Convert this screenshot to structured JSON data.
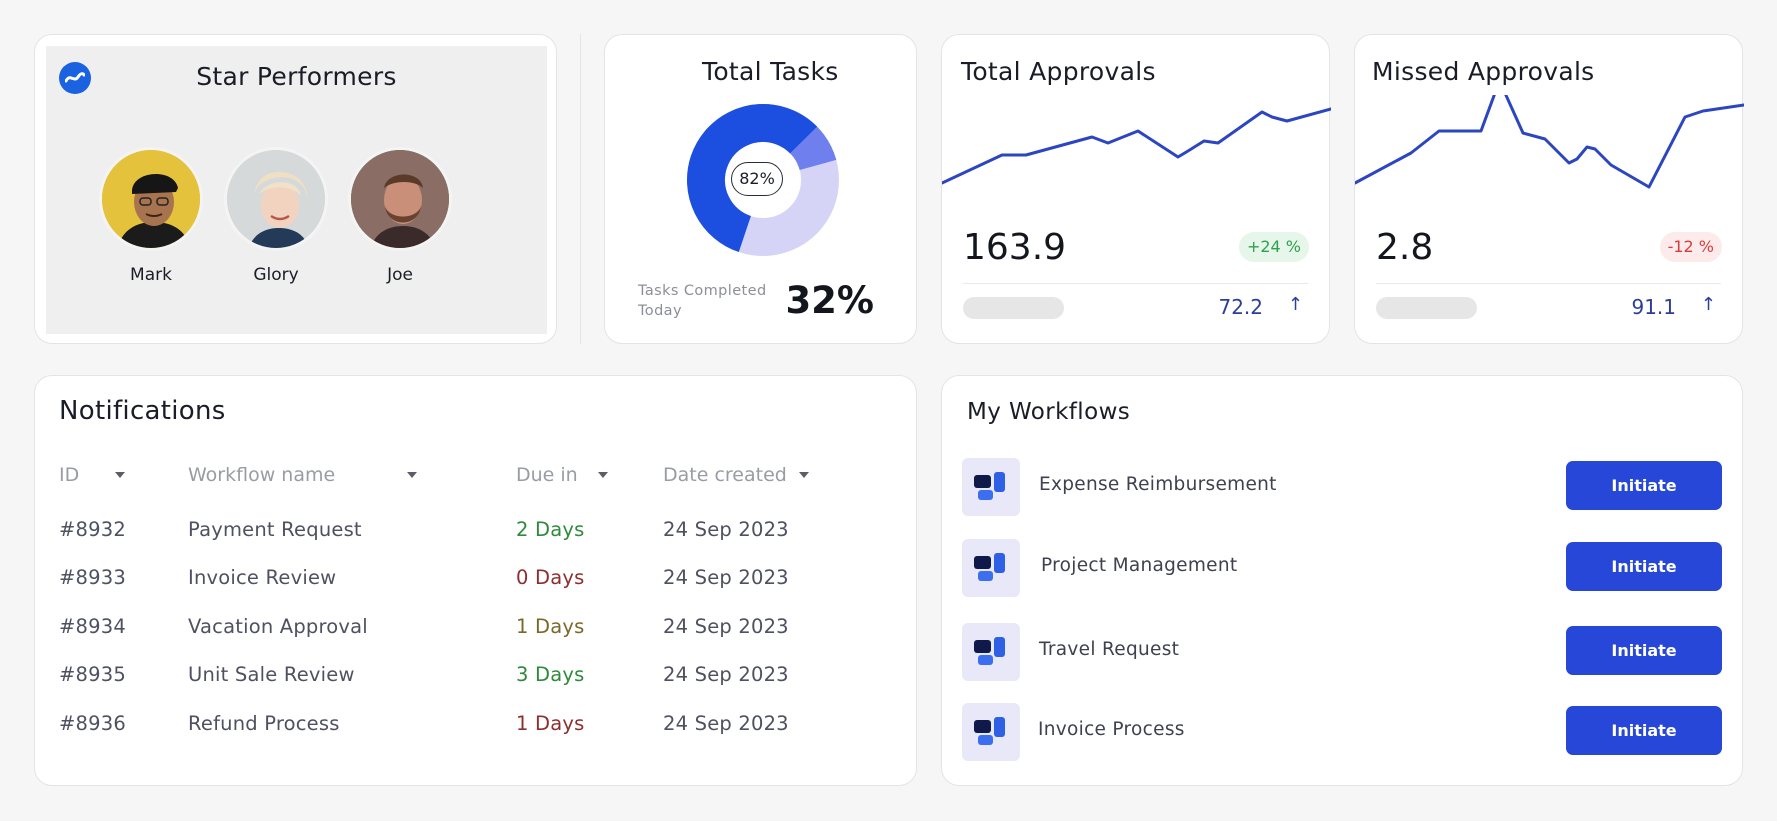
{
  "star_performers": {
    "title": "Star Performers",
    "people": [
      {
        "name": "Mark"
      },
      {
        "name": "Glory"
      },
      {
        "name": "Joe"
      }
    ]
  },
  "total_tasks": {
    "title": "Total Tasks",
    "donut_label": "82%",
    "completed_fraction": 0.82,
    "caption": "Tasks Completed Today",
    "percent": "32%"
  },
  "total_approvals": {
    "title": "Total Approvals",
    "value": "163.9",
    "change": "+24 %",
    "sub_value": "72.2"
  },
  "missed_approvals": {
    "title": "Missed Approvals",
    "value": "2.8",
    "change": "-12 %",
    "sub_value": "91.1"
  },
  "notifications": {
    "title": "Notifications",
    "columns": [
      "ID",
      "Workflow name",
      "Due in",
      "Date created"
    ],
    "rows": [
      {
        "id": "#8932",
        "name": "Payment Request",
        "due": "2 Days",
        "date": "24 Sep 2023"
      },
      {
        "id": "#8933",
        "name": "Invoice Review",
        "due": "0 Days",
        "date": "24 Sep 2023"
      },
      {
        "id": "#8934",
        "name": "Vacation Approval",
        "due": "1 Days",
        "date": "24 Sep 2023"
      },
      {
        "id": "#8935",
        "name": "Unit Sale Review",
        "due": "3 Days",
        "date": "24 Sep 2023"
      },
      {
        "id": "#8936",
        "name": "Refund Process",
        "due": "1 Days",
        "date": "24 Sep 2023"
      }
    ]
  },
  "workflows": {
    "title": "My Workflows",
    "button_label": "Initiate",
    "items": [
      {
        "name": "Expense Reimbursement"
      },
      {
        "name": "Project Management"
      },
      {
        "name": "Travel Request"
      },
      {
        "name": "Invoice Process"
      }
    ]
  },
  "colors": {
    "accent": "#2747d8",
    "line": "#2c45c0",
    "positive": "#2ea24a",
    "negative": "#d83c3c"
  }
}
